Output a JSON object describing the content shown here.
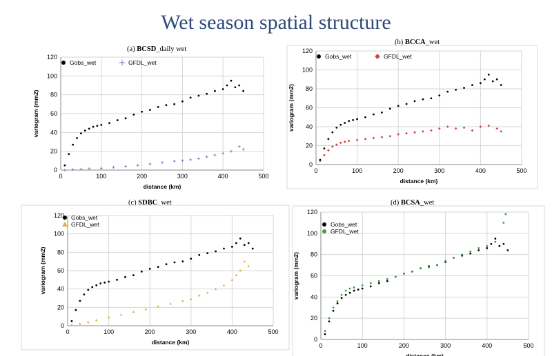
{
  "page": {
    "title": "Wet season spatial structure"
  },
  "panels": [
    {
      "prefix": "(a) ",
      "bold": "BCSD",
      "suffix": "_daily wet"
    },
    {
      "prefix": "(b) ",
      "bold": "BCCA",
      "suffix": "_wet"
    },
    {
      "prefix": "(c) ",
      "bold": "SDBC",
      "suffix": "_wet"
    },
    {
      "prefix": "(d) ",
      "bold": "BCSA",
      "suffix": "_wet"
    }
  ],
  "chart_data": [
    {
      "type": "scatter",
      "title": "(a) BCSD_daily wet",
      "xlabel": "distance (km)",
      "ylabel": "variogram (mm2)",
      "xlim": [
        0,
        500
      ],
      "ylim": [
        0,
        120
      ],
      "xticks": [
        0,
        100,
        200,
        300,
        400,
        500
      ],
      "yticks": [
        0,
        20,
        40,
        60,
        80,
        100,
        120
      ],
      "grid": true,
      "legend": "top-left",
      "series": [
        {
          "name": "Gobs_wet",
          "marker": "circle",
          "color": "#000000",
          "x": [
            10,
            20,
            30,
            40,
            50,
            60,
            70,
            80,
            90,
            100,
            120,
            140,
            160,
            180,
            200,
            220,
            240,
            260,
            280,
            300,
            320,
            340,
            360,
            380,
            400,
            410,
            420,
            430,
            440,
            450
          ],
          "y": [
            5,
            17,
            27,
            34,
            39,
            42,
            44,
            46,
            47,
            48,
            50,
            53,
            55,
            59,
            62,
            64,
            67,
            69,
            70,
            73,
            77,
            79,
            81,
            84,
            86,
            90,
            95,
            88,
            90,
            84
          ]
        },
        {
          "name": "GFDL_wet",
          "marker": "plus",
          "color": "#7a6fc0",
          "x": [
            10,
            30,
            50,
            70,
            100,
            130,
            160,
            190,
            220,
            250,
            280,
            300,
            320,
            340,
            360,
            380,
            400,
            420,
            440,
            450
          ],
          "y": [
            0,
            0.5,
            1,
            1.5,
            2,
            3,
            4,
            5,
            6.5,
            8,
            9.5,
            10,
            11,
            12,
            14,
            16,
            18,
            20,
            25,
            22
          ]
        }
      ]
    },
    {
      "type": "scatter",
      "title": "(b) BCCA_wet",
      "xlabel": "distance (km)",
      "ylabel": "variogram (mm2)",
      "xlim": [
        0,
        500
      ],
      "ylim": [
        0,
        120
      ],
      "xticks": [
        0,
        100,
        200,
        300,
        400,
        500
      ],
      "yticks": [
        0,
        20,
        40,
        60,
        80,
        100,
        120
      ],
      "grid": true,
      "legend": "top-left",
      "series": [
        {
          "name": "Gobs_wet",
          "marker": "circle",
          "color": "#000000",
          "x": [
            10,
            20,
            30,
            40,
            50,
            60,
            70,
            80,
            90,
            100,
            120,
            140,
            160,
            180,
            200,
            220,
            240,
            260,
            280,
            300,
            320,
            340,
            360,
            380,
            400,
            410,
            420,
            430,
            440,
            450
          ],
          "y": [
            5,
            17,
            27,
            34,
            39,
            42,
            44,
            46,
            47,
            48,
            50,
            53,
            55,
            59,
            62,
            64,
            67,
            69,
            70,
            73,
            77,
            79,
            81,
            84,
            86,
            90,
            95,
            88,
            90,
            84
          ]
        },
        {
          "name": "GFDL_wet",
          "marker": "diamond",
          "color": "#d84040",
          "x": [
            10,
            20,
            30,
            40,
            50,
            60,
            70,
            80,
            100,
            120,
            140,
            160,
            180,
            200,
            220,
            240,
            260,
            280,
            300,
            320,
            340,
            360,
            380,
            400,
            420,
            440,
            450
          ],
          "y": [
            4,
            10,
            15,
            19,
            21,
            23,
            24,
            25,
            26,
            27,
            28,
            29,
            30,
            32,
            33,
            34,
            35,
            36,
            38,
            40,
            38,
            39,
            36,
            40,
            41,
            38,
            35
          ]
        }
      ]
    },
    {
      "type": "scatter",
      "title": "(c) SDBC_wet",
      "xlabel": "distance (km)",
      "ylabel": "variogram (mm2)",
      "xlim": [
        0,
        500
      ],
      "ylim": [
        0,
        120
      ],
      "xticks": [
        0,
        100,
        200,
        300,
        400,
        500
      ],
      "yticks": [
        0,
        20,
        40,
        60,
        80,
        100,
        120
      ],
      "grid": true,
      "legend": "top-left",
      "series": [
        {
          "name": "Gobs_wet",
          "marker": "circle",
          "color": "#000000",
          "x": [
            10,
            20,
            30,
            40,
            50,
            60,
            70,
            80,
            90,
            100,
            120,
            140,
            160,
            180,
            200,
            220,
            240,
            260,
            280,
            300,
            320,
            340,
            360,
            380,
            400,
            410,
            420,
            430,
            440,
            450
          ],
          "y": [
            5,
            17,
            27,
            34,
            39,
            42,
            44,
            46,
            47,
            48,
            50,
            53,
            55,
            59,
            62,
            64,
            67,
            69,
            70,
            73,
            77,
            79,
            81,
            84,
            86,
            90,
            95,
            88,
            90,
            84
          ]
        },
        {
          "name": "GFDL_wet",
          "marker": "triangle",
          "color": "#e0b040",
          "x": [
            10,
            30,
            50,
            70,
            100,
            130,
            160,
            190,
            220,
            250,
            280,
            300,
            320,
            340,
            360,
            380,
            400,
            410,
            420,
            430,
            440,
            450
          ],
          "y": [
            1,
            2,
            4,
            6,
            9,
            12,
            15,
            18,
            21,
            24,
            27,
            29,
            33,
            36,
            40,
            44,
            50,
            55,
            60,
            70,
            65,
            84
          ]
        }
      ]
    },
    {
      "type": "scatter",
      "title": "(d) BCSA_wet",
      "xlabel": "distance (km)",
      "ylabel": "variogram (mm2)",
      "xlim": [
        0,
        500
      ],
      "ylim": [
        0,
        120
      ],
      "xticks": [
        0,
        100,
        200,
        300,
        400,
        500
      ],
      "yticks": [
        0,
        20,
        40,
        60,
        80,
        100,
        120
      ],
      "grid": true,
      "legend": "top-left",
      "series": [
        {
          "name": "Gobs_wet",
          "marker": "circle",
          "color": "#000000",
          "x": [
            10,
            20,
            30,
            40,
            50,
            60,
            70,
            80,
            90,
            100,
            120,
            140,
            160,
            180,
            200,
            220,
            240,
            260,
            280,
            300,
            320,
            340,
            360,
            380,
            400,
            410,
            420,
            430,
            440,
            450
          ],
          "y": [
            5,
            17,
            27,
            34,
            39,
            42,
            44,
            46,
            47,
            48,
            50,
            53,
            55,
            59,
            62,
            64,
            67,
            69,
            70,
            73,
            77,
            79,
            81,
            84,
            86,
            90,
            95,
            88,
            90,
            84
          ]
        },
        {
          "name": "GFDL_wet",
          "marker": "circle",
          "color": "#3aa040",
          "x": [
            10,
            20,
            30,
            40,
            50,
            60,
            70,
            80,
            100,
            120,
            140,
            160,
            180,
            200,
            220,
            240,
            260,
            280,
            300,
            320,
            340,
            360,
            380,
            400,
            420,
            440,
            445
          ],
          "y": [
            8,
            20,
            30,
            36,
            42,
            46,
            48,
            49,
            51,
            53,
            55,
            57,
            59,
            62,
            64,
            67,
            68,
            70,
            74,
            77,
            80,
            83,
            86,
            88,
            92,
            110,
            118
          ]
        }
      ]
    }
  ]
}
